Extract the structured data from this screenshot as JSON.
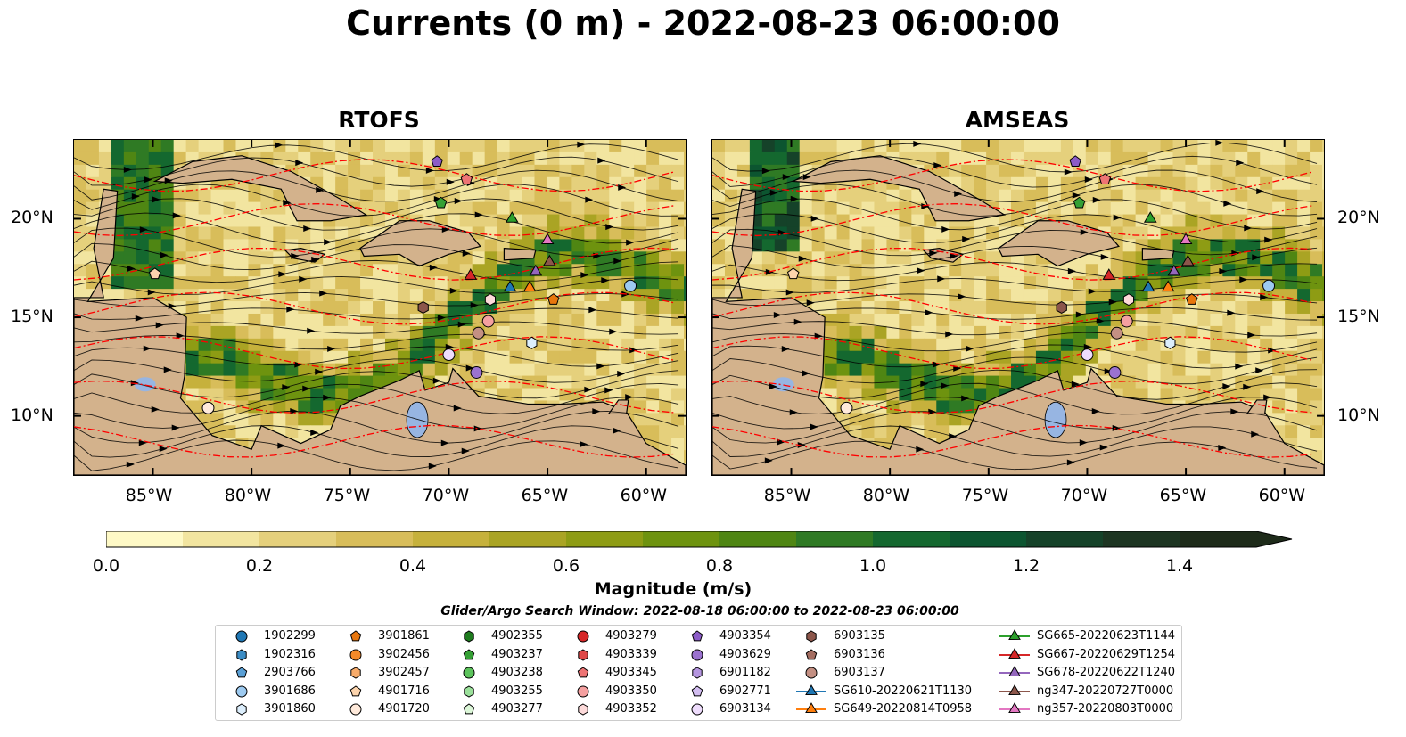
{
  "title": "Currents (0 m) - 2022-08-23 06:00:00",
  "panels": [
    {
      "title": "RTOFS"
    },
    {
      "title": "AMSEAS"
    }
  ],
  "axes": {
    "lon_ticks": [
      "85°W",
      "80°W",
      "75°W",
      "70°W",
      "65°W",
      "60°W"
    ],
    "lat_ticks": [
      "10°N",
      "15°N",
      "20°N"
    ],
    "lon_range": [
      -89,
      -58
    ],
    "lat_range": [
      7,
      24
    ]
  },
  "colorbar": {
    "label": "Magnitude (m/s)",
    "ticks": [
      "0.0",
      "0.2",
      "0.4",
      "0.6",
      "0.8",
      "1.0",
      "1.2",
      "1.4"
    ],
    "range": [
      0,
      1.5
    ],
    "extend": "max",
    "colors": [
      "#fef9c6",
      "#f2e5a0",
      "#e5d07c",
      "#d8bd5a",
      "#c6b13c",
      "#aaa424",
      "#8e9c14",
      "#6e930f",
      "#4f8613",
      "#2f7a24",
      "#14682f",
      "#0c5530",
      "#154229",
      "#1d3522",
      "#1e2b1a"
    ]
  },
  "search_window": "Glider/Argo Search Window: 2022-08-18 06:00:00 to 2022-08-23 06:00:00",
  "colors": {
    "land": "#d3b28c",
    "lake": "#97b5e2",
    "stream_red": "#ff0000"
  },
  "chart_data": {
    "type": "map",
    "title": "Currents (0 m) - 2022-08-23 06:00:00",
    "variable": "Currents (0 m)",
    "colorbar_label": "Magnitude (m/s)",
    "panels": [
      "RTOFS",
      "AMSEAS"
    ],
    "extent": {
      "lon": [
        -89,
        -58
      ],
      "lat": [
        7,
        24
      ]
    },
    "observations": [
      {
        "id": "1902299",
        "marker": "circle",
        "color": "#1f77b4"
      },
      {
        "id": "1902316",
        "marker": "hexagon",
        "color": "#3b8cc4"
      },
      {
        "id": "2903766",
        "marker": "pentagon",
        "color": "#5aa0d6"
      },
      {
        "id": "3901686",
        "marker": "circle",
        "color": "#9dcaf0",
        "lon": -60.8,
        "lat": 16.6
      },
      {
        "id": "3901860",
        "marker": "hexagon",
        "color": "#dceefc",
        "lon": -65.8,
        "lat": 13.7
      },
      {
        "id": "3901861",
        "marker": "pentagon",
        "color": "#e8760d",
        "lon": -64.7,
        "lat": 15.9
      },
      {
        "id": "3902456",
        "marker": "circle",
        "color": "#f58a2a"
      },
      {
        "id": "3902457",
        "marker": "hexagon",
        "color": "#f7ab6a"
      },
      {
        "id": "4901716",
        "marker": "pentagon",
        "color": "#fcd4ad",
        "lon": -84.9,
        "lat": 17.2
      },
      {
        "id": "4901720",
        "marker": "circle",
        "color": "#ffeadb",
        "lon": -82.2,
        "lat": 10.4
      },
      {
        "id": "4902355",
        "marker": "hexagon",
        "color": "#1e7b1e"
      },
      {
        "id": "4903237",
        "marker": "pentagon",
        "color": "#35a035",
        "lon": -70.4,
        "lat": 20.8
      },
      {
        "id": "4903238",
        "marker": "circle",
        "color": "#5cc35c"
      },
      {
        "id": "4903255",
        "marker": "hexagon",
        "color": "#9ae09a"
      },
      {
        "id": "4903277",
        "marker": "pentagon",
        "color": "#dcf7d8"
      },
      {
        "id": "4903279",
        "marker": "circle",
        "color": "#d62728"
      },
      {
        "id": "4903339",
        "marker": "hexagon",
        "color": "#e04848"
      },
      {
        "id": "4903345",
        "marker": "pentagon",
        "color": "#ee7474",
        "lon": -69.1,
        "lat": 22.0
      },
      {
        "id": "4903350",
        "marker": "circle",
        "color": "#f5a0a0",
        "lon": -68.0,
        "lat": 14.8
      },
      {
        "id": "4903352",
        "marker": "hexagon",
        "color": "#fddada",
        "lon": -67.9,
        "lat": 15.9
      },
      {
        "id": "4903354",
        "marker": "pentagon",
        "color": "#8c5cc8",
        "lon": -70.6,
        "lat": 22.9
      },
      {
        "id": "4903629",
        "marker": "circle",
        "color": "#9b72cf",
        "lon": -68.6,
        "lat": 12.2
      },
      {
        "id": "6901182",
        "marker": "hexagon",
        "color": "#b596e0"
      },
      {
        "id": "6902771",
        "marker": "pentagon",
        "color": "#d2bdf0"
      },
      {
        "id": "6903134",
        "marker": "circle",
        "color": "#eedcfc",
        "lon": -70.0,
        "lat": 13.1
      },
      {
        "id": "6903135",
        "marker": "hexagon",
        "color": "#8c564b",
        "lon": -71.3,
        "lat": 15.5
      },
      {
        "id": "6903136",
        "marker": "pentagon",
        "color": "#a46d61"
      },
      {
        "id": "6903137",
        "marker": "circle",
        "color": "#c49083",
        "lon": -68.5,
        "lat": 14.2
      },
      {
        "id": "SG610-20220621T1130",
        "marker": "triangle",
        "color": "#1f77b4",
        "lon": -66.9,
        "lat": 16.5
      },
      {
        "id": "SG649-20220814T0958",
        "marker": "triangle",
        "color": "#ff7f0e",
        "lon": -65.9,
        "lat": 16.5
      },
      {
        "id": "SG665-20220623T1144",
        "marker": "triangle",
        "color": "#2ca02c",
        "lon": -66.8,
        "lat": 20.0
      },
      {
        "id": "SG667-20220629T1254",
        "marker": "triangle",
        "color": "#d62728",
        "lon": -68.9,
        "lat": 17.1
      },
      {
        "id": "SG678-20220622T1240",
        "marker": "triangle",
        "color": "#9467bd",
        "lon": -65.6,
        "lat": 17.3
      },
      {
        "id": "ng347-20220727T0000",
        "marker": "triangle",
        "color": "#8c564b",
        "lon": -64.9,
        "lat": 17.8
      },
      {
        "id": "ng357-20220803T0000",
        "marker": "triangle",
        "color": "#e377c2",
        "lon": -65.0,
        "lat": 18.9
      }
    ]
  }
}
